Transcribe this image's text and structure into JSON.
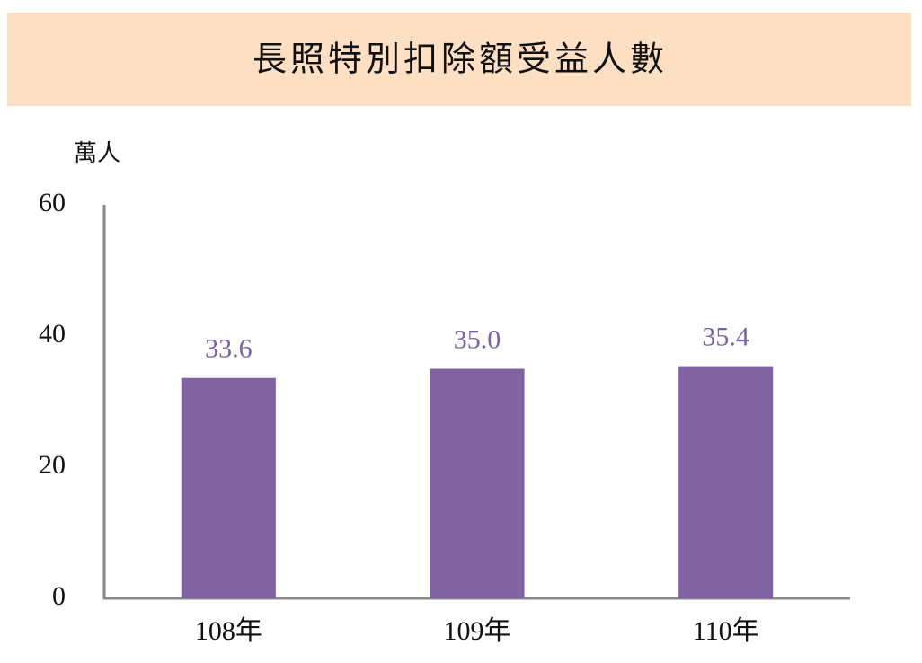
{
  "chart_data": {
    "type": "bar",
    "title": "長照特別扣除額受益人數",
    "y_label": "萬人",
    "categories": [
      "108年",
      "109年",
      "110年"
    ],
    "values": [
      33.6,
      35.0,
      35.4
    ],
    "value_labels": [
      "33.6",
      "35.0",
      "35.4"
    ],
    "color": "#8064a2",
    "label_color": "#7a62a8",
    "title_background": "#fde0c4",
    "ylim": [
      0,
      60
    ],
    "yticks": [
      0,
      20,
      40,
      60
    ]
  }
}
